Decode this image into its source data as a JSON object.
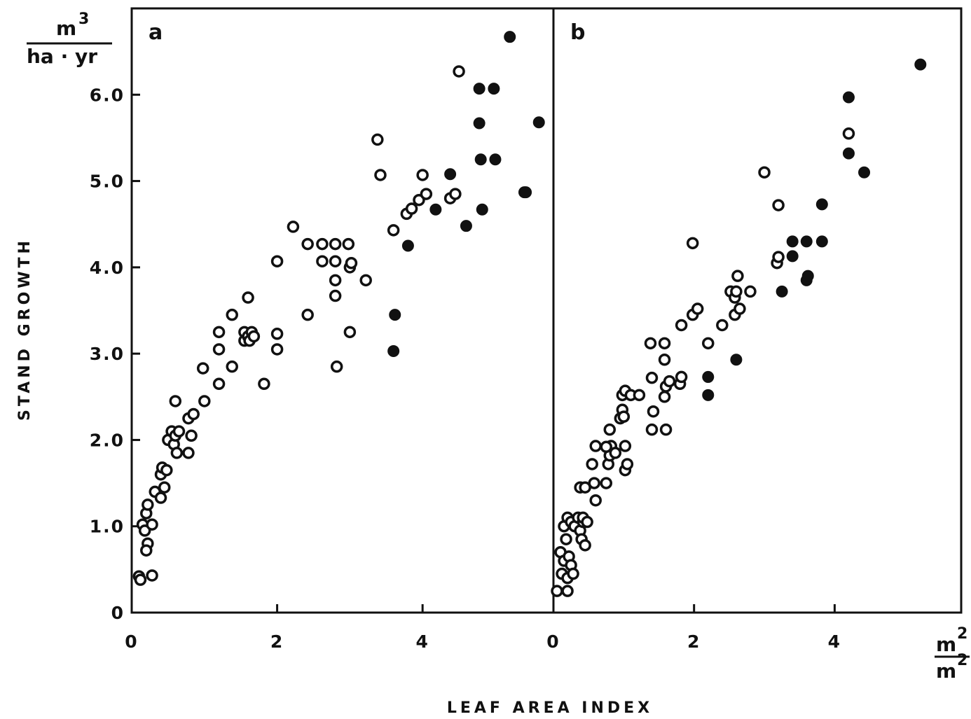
{
  "chart_data": [
    {
      "type": "scatter",
      "panel_label": "a",
      "xlim": [
        0,
        5.8
      ],
      "ylim": [
        0,
        7.0
      ],
      "x_ticks": [
        "0",
        "2",
        "4"
      ],
      "x_tick_values": [
        0,
        2,
        4
      ],
      "y_ticks": [
        "0",
        "1.0",
        "2.0",
        "3.0",
        "4.0",
        "5.0",
        "6.0"
      ],
      "y_tick_values": [
        0,
        1,
        2,
        3,
        4,
        5,
        6
      ],
      "series": [
        {
          "marker": "open-circle",
          "points": [
            [
              0.1,
              0.42
            ],
            [
              0.12,
              0.38
            ],
            [
              0.28,
              0.43
            ],
            [
              0.15,
              1.02
            ],
            [
              0.18,
              0.95
            ],
            [
              0.28,
              1.02
            ],
            [
              0.22,
              0.8
            ],
            [
              0.2,
              0.72
            ],
            [
              0.2,
              1.15
            ],
            [
              0.22,
              1.25
            ],
            [
              0.32,
              1.4
            ],
            [
              0.4,
              1.33
            ],
            [
              0.45,
              1.45
            ],
            [
              0.4,
              1.6
            ],
            [
              0.42,
              1.68
            ],
            [
              0.48,
              1.65
            ],
            [
              0.5,
              2.0
            ],
            [
              0.55,
              2.1
            ],
            [
              0.58,
              1.95
            ],
            [
              0.6,
              2.05
            ],
            [
              0.62,
              1.85
            ],
            [
              0.65,
              2.1
            ],
            [
              0.6,
              2.45
            ],
            [
              0.78,
              2.25
            ],
            [
              0.85,
              2.3
            ],
            [
              0.82,
              2.05
            ],
            [
              0.78,
              1.85
            ],
            [
              0.98,
              2.83
            ],
            [
              1.0,
              2.45
            ],
            [
              1.2,
              2.65
            ],
            [
              1.2,
              3.05
            ],
            [
              1.2,
              3.25
            ],
            [
              1.38,
              2.85
            ],
            [
              1.38,
              3.45
            ],
            [
              1.55,
              3.15
            ],
            [
              1.55,
              3.25
            ],
            [
              1.6,
              3.2
            ],
            [
              1.6,
              3.65
            ],
            [
              1.62,
              3.15
            ],
            [
              1.65,
              3.25
            ],
            [
              1.68,
              3.2
            ],
            [
              1.82,
              2.65
            ],
            [
              2.0,
              3.05
            ],
            [
              2.0,
              3.23
            ],
            [
              2.0,
              4.07
            ],
            [
              2.22,
              4.47
            ],
            [
              2.42,
              3.45
            ],
            [
              2.42,
              4.27
            ],
            [
              2.62,
              4.07
            ],
            [
              2.62,
              4.27
            ],
            [
              2.8,
              4.07
            ],
            [
              2.8,
              4.27
            ],
            [
              2.8,
              3.85
            ],
            [
              2.8,
              3.67
            ],
            [
              2.82,
              2.85
            ],
            [
              2.98,
              4.27
            ],
            [
              3.0,
              4.0
            ],
            [
              3.02,
              4.05
            ],
            [
              3.0,
              3.25
            ],
            [
              3.22,
              3.85
            ],
            [
              3.38,
              5.48
            ],
            [
              3.42,
              5.07
            ],
            [
              3.6,
              4.43
            ],
            [
              3.78,
              4.62
            ],
            [
              3.85,
              4.68
            ],
            [
              3.95,
              4.78
            ],
            [
              4.0,
              5.07
            ],
            [
              4.05,
              4.85
            ],
            [
              4.38,
              4.8
            ],
            [
              4.45,
              4.85
            ],
            [
              4.5,
              6.27
            ]
          ]
        },
        {
          "marker": "filled-circle",
          "points": [
            [
              3.6,
              3.03
            ],
            [
              3.62,
              3.45
            ],
            [
              3.8,
              4.25
            ],
            [
              4.18,
              4.67
            ],
            [
              4.38,
              5.08
            ],
            [
              4.6,
              4.48
            ],
            [
              4.78,
              5.67
            ],
            [
              4.78,
              6.07
            ],
            [
              4.8,
              5.25
            ],
            [
              4.82,
              4.67
            ],
            [
              4.98,
              6.07
            ],
            [
              5.0,
              5.25
            ],
            [
              5.2,
              6.67
            ],
            [
              5.4,
              4.87
            ],
            [
              5.42,
              4.87
            ],
            [
              5.6,
              5.68
            ]
          ]
        }
      ]
    },
    {
      "type": "scatter",
      "panel_label": "b",
      "xlim": [
        0,
        5.8
      ],
      "ylim": [
        0,
        7.0
      ],
      "x_ticks": [
        "0",
        "2",
        "4"
      ],
      "x_tick_values": [
        0,
        2,
        4
      ],
      "series": [
        {
          "marker": "open-circle",
          "points": [
            [
              0.05,
              0.25
            ],
            [
              0.1,
              0.7
            ],
            [
              0.12,
              0.45
            ],
            [
              0.15,
              0.6
            ],
            [
              0.2,
              0.4
            ],
            [
              0.22,
              0.65
            ],
            [
              0.25,
              0.55
            ],
            [
              0.28,
              0.45
            ],
            [
              0.2,
              0.25
            ],
            [
              0.15,
              1.0
            ],
            [
              0.18,
              0.85
            ],
            [
              0.2,
              1.1
            ],
            [
              0.25,
              1.05
            ],
            [
              0.3,
              1.0
            ],
            [
              0.35,
              1.1
            ],
            [
              0.38,
              0.95
            ],
            [
              0.4,
              0.85
            ],
            [
              0.42,
              1.05
            ],
            [
              0.45,
              0.78
            ],
            [
              0.42,
              1.1
            ],
            [
              0.48,
              1.05
            ],
            [
              0.38,
              1.45
            ],
            [
              0.45,
              1.45
            ],
            [
              0.6,
              1.3
            ],
            [
              0.58,
              1.5
            ],
            [
              0.55,
              1.72
            ],
            [
              0.6,
              1.93
            ],
            [
              0.75,
              1.5
            ],
            [
              0.78,
              1.72
            ],
            [
              0.8,
              1.82
            ],
            [
              0.82,
              1.93
            ],
            [
              0.88,
              1.85
            ],
            [
              0.75,
              1.92
            ],
            [
              0.8,
              2.12
            ],
            [
              0.95,
              2.25
            ],
            [
              0.98,
              2.35
            ],
            [
              1.0,
              2.27
            ],
            [
              1.02,
              1.65
            ],
            [
              1.05,
              1.72
            ],
            [
              1.02,
              1.93
            ],
            [
              0.98,
              2.52
            ],
            [
              1.02,
              2.57
            ],
            [
              1.1,
              2.52
            ],
            [
              1.22,
              2.52
            ],
            [
              1.38,
              3.12
            ],
            [
              1.4,
              2.12
            ],
            [
              1.4,
              2.72
            ],
            [
              1.42,
              2.33
            ],
            [
              1.6,
              2.12
            ],
            [
              1.58,
              2.5
            ],
            [
              1.6,
              2.62
            ],
            [
              1.65,
              2.68
            ],
            [
              1.58,
              2.93
            ],
            [
              1.58,
              3.12
            ],
            [
              1.8,
              2.65
            ],
            [
              1.82,
              2.73
            ],
            [
              1.82,
              3.33
            ],
            [
              1.98,
              3.45
            ],
            [
              2.05,
              3.52
            ],
            [
              1.98,
              4.28
            ],
            [
              2.2,
              3.12
            ],
            [
              2.4,
              3.33
            ],
            [
              2.52,
              3.72
            ],
            [
              2.58,
              3.45
            ],
            [
              2.58,
              3.65
            ],
            [
              2.6,
              3.72
            ],
            [
              2.62,
              3.9
            ],
            [
              2.65,
              3.52
            ],
            [
              2.8,
              3.72
            ],
            [
              3.0,
              5.1
            ],
            [
              3.18,
              4.05
            ],
            [
              3.2,
              4.12
            ],
            [
              3.2,
              4.72
            ],
            [
              4.2,
              5.55
            ]
          ]
        },
        {
          "marker": "filled-circle",
          "points": [
            [
              2.2,
              2.73
            ],
            [
              2.2,
              2.52
            ],
            [
              2.6,
              2.93
            ],
            [
              3.25,
              3.72
            ],
            [
              3.4,
              4.13
            ],
            [
              3.4,
              4.3
            ],
            [
              3.6,
              3.85
            ],
            [
              3.62,
              3.9
            ],
            [
              3.6,
              4.3
            ],
            [
              3.82,
              4.3
            ],
            [
              3.82,
              4.73
            ],
            [
              4.2,
              5.32
            ],
            [
              4.2,
              5.97
            ],
            [
              4.42,
              5.1
            ],
            [
              5.22,
              6.35
            ]
          ]
        }
      ]
    }
  ],
  "y_axis_title": "STAND GROWTH",
  "x_axis_title": "LEAF AREA INDEX",
  "y_unit": {
    "numerator_base": "m",
    "numerator_exp": "3",
    "denominator": "ha · yr"
  },
  "x_unit": {
    "numerator_base": "m",
    "numerator_exp": "2",
    "denominator_base": "m",
    "denominator_exp": "2"
  }
}
